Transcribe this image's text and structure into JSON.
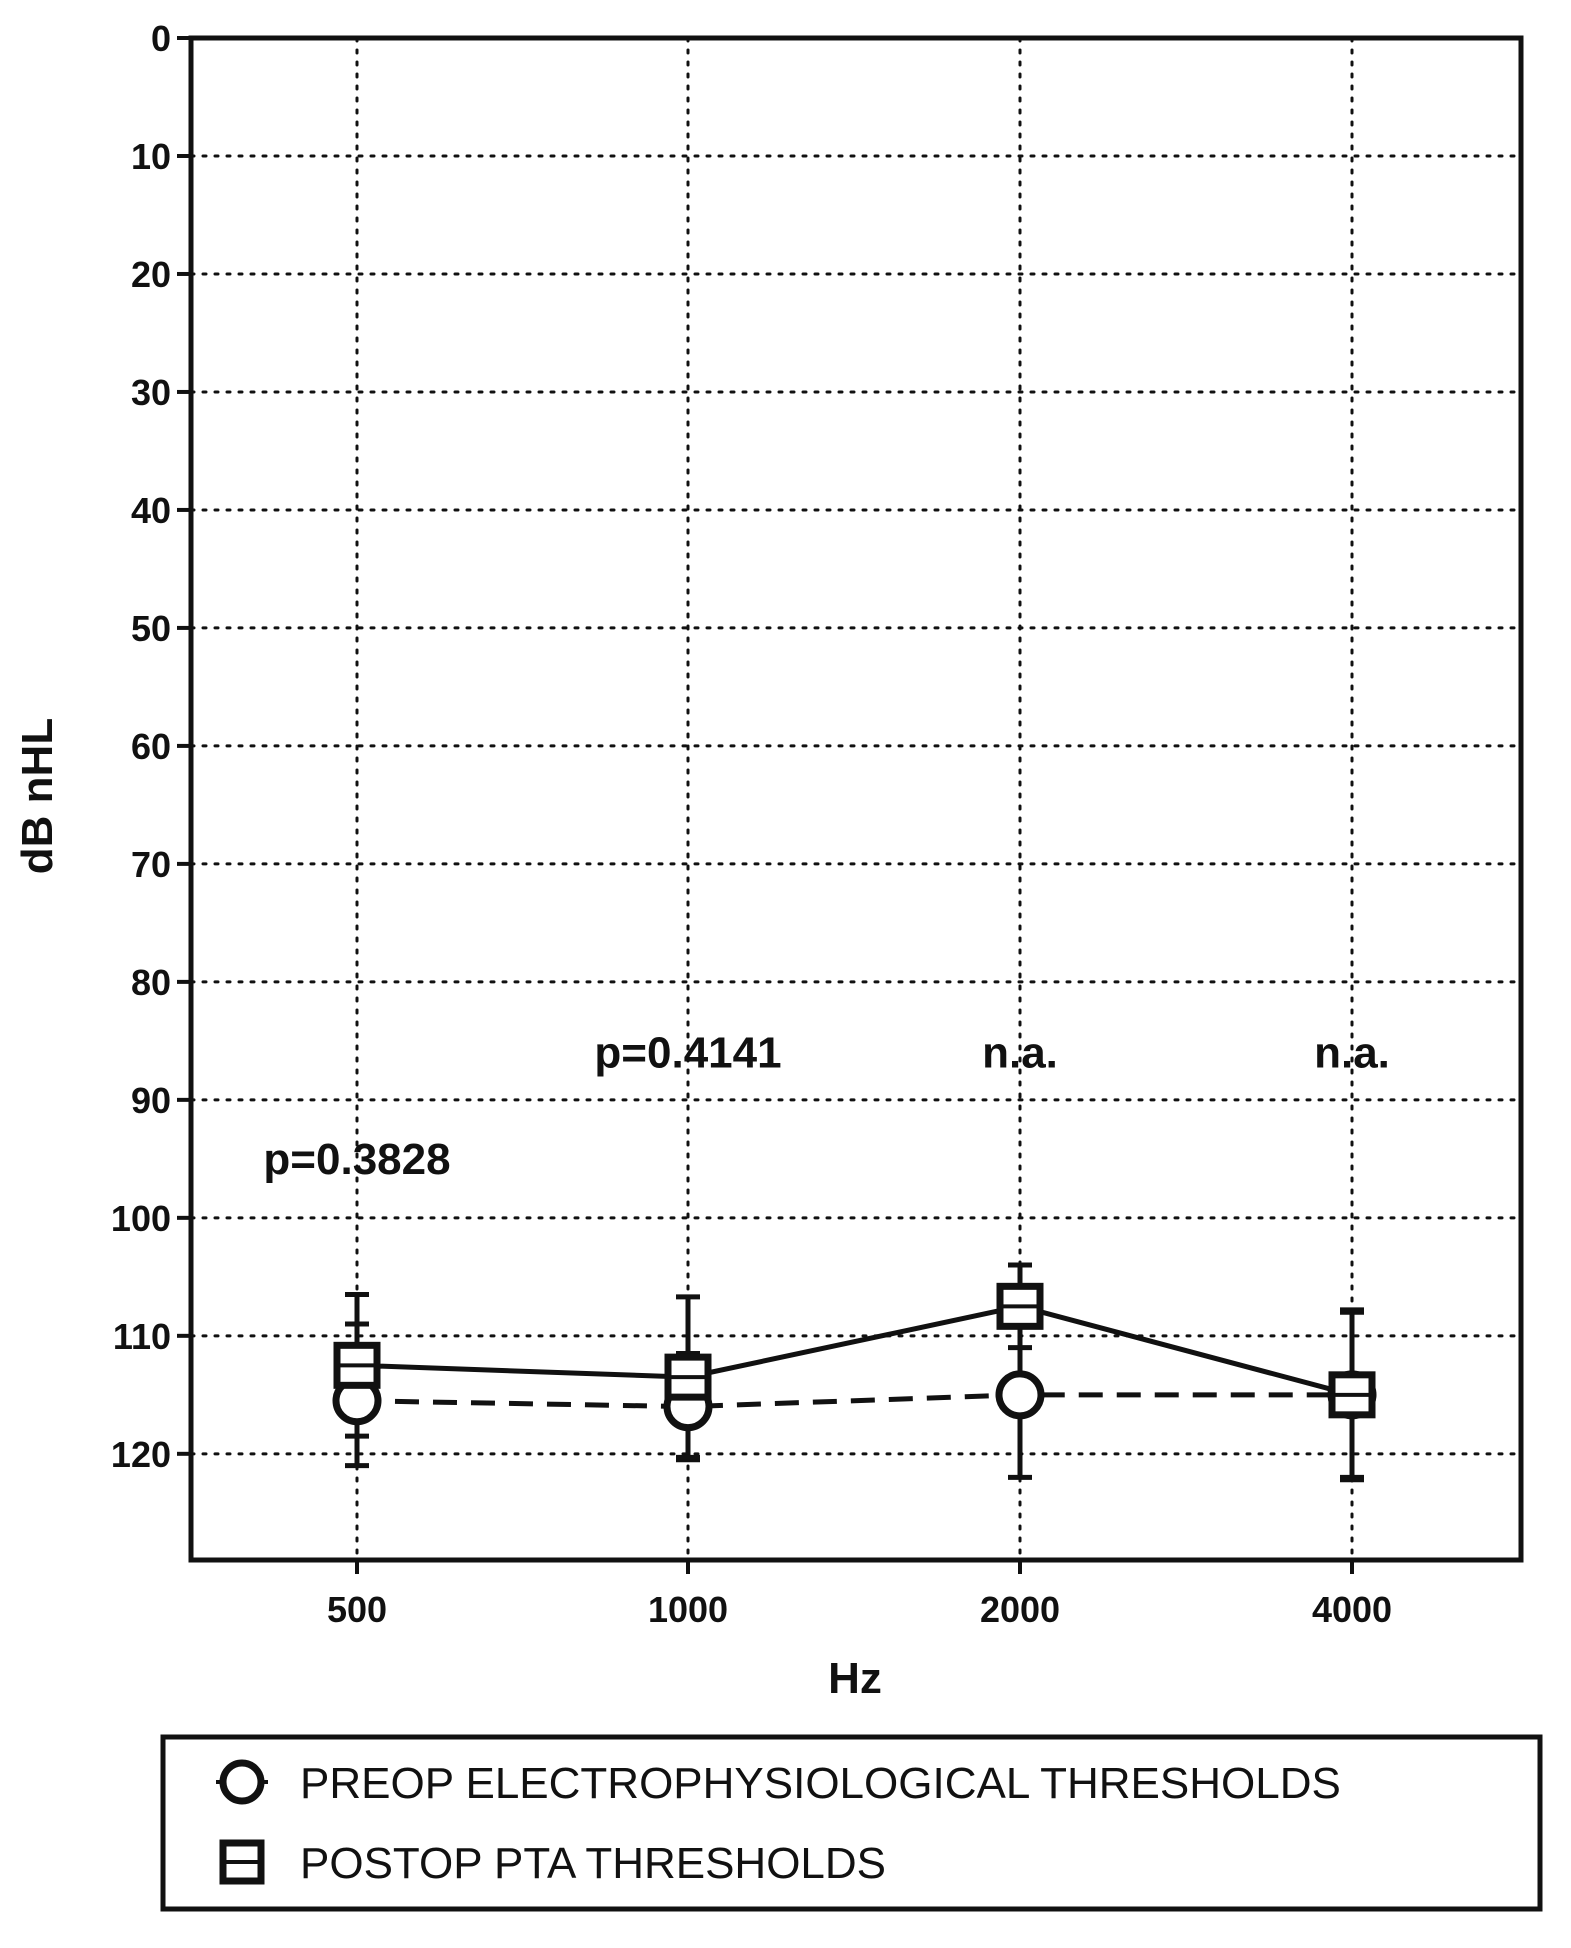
{
  "chart_data": {
    "type": "line",
    "title": "",
    "xlabel": "Hz",
    "ylabel": "dB nHL",
    "categories": [
      "500",
      "1000",
      "2000",
      "4000"
    ],
    "y_ticks": [
      "0",
      "10",
      "20",
      "30",
      "40",
      "50",
      "60",
      "70",
      "80",
      "90",
      "100",
      "110",
      "120"
    ],
    "ylim": [
      0,
      129
    ],
    "y_inverted": true,
    "grid": "dotted",
    "legend_position": "bottom",
    "series": [
      {
        "name": "PREOP ELECTROPHYSIOLOGICAL THRESHOLDS",
        "marker": "circle",
        "line_style": "dashed",
        "values": [
          115.5,
          116,
          115,
          115
        ],
        "error_low": [
          109,
          111.5,
          108,
          108
        ],
        "error_high": [
          121,
          120.5,
          122,
          122
        ]
      },
      {
        "name": "POSTOP PTA THRESHOLDS",
        "marker": "square",
        "line_style": "solid",
        "values": [
          112.5,
          113.5,
          107.5,
          115
        ],
        "error_low": [
          106.5,
          106.7,
          104,
          107.8
        ],
        "error_high": [
          118.5,
          120.3,
          111,
          122.2
        ]
      }
    ],
    "annotations": [
      {
        "text": "p=0.3828",
        "category": "500",
        "y": 95
      },
      {
        "text": "p=0.4141",
        "category": "1000",
        "y": 86
      },
      {
        "text": "n.a.",
        "category": "2000",
        "y": 86
      },
      {
        "text": "n.a.",
        "category": "4000",
        "y": 86
      }
    ]
  }
}
